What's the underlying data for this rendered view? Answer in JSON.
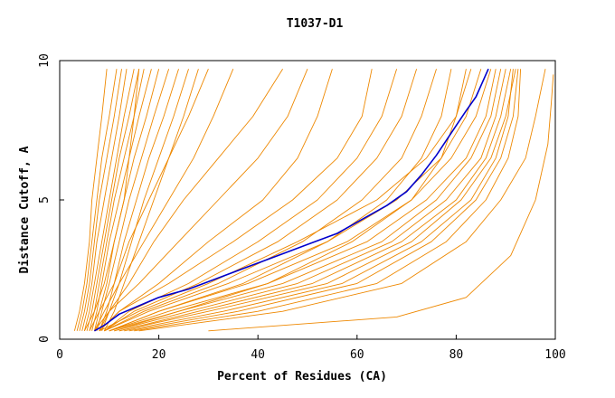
{
  "chart_data": {
    "type": "line",
    "title": "T1037-D1",
    "xlabel": "Percent of Residues (CA)",
    "ylabel": "Distance Cutoff, A",
    "xlim": [
      0,
      100
    ],
    "ylim": [
      0,
      10
    ],
    "xticks": [
      0,
      20,
      40,
      60,
      80,
      100
    ],
    "yticks": [
      0,
      5,
      10
    ],
    "grid": false,
    "colors": {
      "orange": "#ee8800",
      "blue": "#0000cc",
      "frame": "#000000"
    },
    "highlight": {
      "x": [
        7,
        9,
        12,
        16,
        20,
        26,
        32,
        38,
        44,
        50,
        56,
        61,
        66,
        70,
        73,
        76,
        79,
        82,
        84,
        85.5,
        86.5
      ],
      "y": [
        0.3,
        0.5,
        0.9,
        1.2,
        1.5,
        1.8,
        2.2,
        2.6,
        3.0,
        3.4,
        3.8,
        4.3,
        4.8,
        5.3,
        5.9,
        6.6,
        7.4,
        8.2,
        8.7,
        9.3,
        9.7
      ]
    },
    "series": [
      {
        "x": [
          3.5,
          4.5,
          5.5,
          6.5,
          7.5,
          8.5,
          10.0,
          11.5
        ],
        "y": [
          0.3,
          1.0,
          2.0,
          3.5,
          5.0,
          6.5,
          8.0,
          9.7
        ]
      },
      {
        "x": [
          4.0,
          5.0,
          6.0,
          7.0,
          8.0,
          9.5,
          11.0,
          12.5
        ],
        "y": [
          0.3,
          1.0,
          2.0,
          3.5,
          5.0,
          6.5,
          8.0,
          9.7
        ]
      },
      {
        "x": [
          4.5,
          5.5,
          6.5,
          7.5,
          9.0,
          10.5,
          12.0,
          13.5
        ],
        "y": [
          0.3,
          1.0,
          2.0,
          3.5,
          5.0,
          6.5,
          8.0,
          9.7
        ]
      },
      {
        "x": [
          5.0,
          6.0,
          7.0,
          8.5,
          10.0,
          11.5,
          13.0,
          15.0
        ],
        "y": [
          0.3,
          1.0,
          2.0,
          3.5,
          5.0,
          6.5,
          8.0,
          9.7
        ]
      },
      {
        "x": [
          5.5,
          6.5,
          7.5,
          9.0,
          10.5,
          12.0,
          14.0,
          16.0
        ],
        "y": [
          0.3,
          1.0,
          2.0,
          3.5,
          5.0,
          6.5,
          8.0,
          9.7
        ]
      },
      {
        "x": [
          6.0,
          7.0,
          8.0,
          9.5,
          11.0,
          13.0,
          15.0,
          17.0
        ],
        "y": [
          0.3,
          1.0,
          2.0,
          3.5,
          5.0,
          6.5,
          8.0,
          9.7
        ]
      },
      {
        "x": [
          6.5,
          7.5,
          8.5,
          10.0,
          12.0,
          14.0,
          16.0,
          18.5
        ],
        "y": [
          0.3,
          1.0,
          2.0,
          3.5,
          5.0,
          6.5,
          8.0,
          9.7
        ]
      },
      {
        "x": [
          7.0,
          8.0,
          9.5,
          11.0,
          13.0,
          15.0,
          17.5,
          20.0
        ],
        "y": [
          0.3,
          1.0,
          2.0,
          3.5,
          5.0,
          6.5,
          8.0,
          9.7
        ]
      },
      {
        "x": [
          7.5,
          8.5,
          10.0,
          12.0,
          14.0,
          16.5,
          19.0,
          22.0
        ],
        "y": [
          0.3,
          1.0,
          2.0,
          3.5,
          5.0,
          6.5,
          8.0,
          9.7
        ]
      },
      {
        "x": [
          8.0,
          9.5,
          11.0,
          13.0,
          15.5,
          18.0,
          21.0,
          24.0
        ],
        "y": [
          0.3,
          1.0,
          2.0,
          3.5,
          5.0,
          6.5,
          8.0,
          9.7
        ]
      },
      {
        "x": [
          8.5,
          10.0,
          12.0,
          14.5,
          17.0,
          20.0,
          23.0,
          26.0
        ],
        "y": [
          0.3,
          1.0,
          2.0,
          3.5,
          5.0,
          6.5,
          8.0,
          9.7
        ]
      },
      {
        "x": [
          9.0,
          11.0,
          13.0,
          16.0,
          19.0,
          22.0,
          25.0,
          28.0
        ],
        "y": [
          0.3,
          1.0,
          2.0,
          3.5,
          5.0,
          6.5,
          8.0,
          9.7
        ]
      },
      {
        "x": [
          3.0,
          4.0,
          5.0,
          6.0,
          6.5,
          7.5,
          8.5,
          9.5
        ],
        "y": [
          0.3,
          1.0,
          2.0,
          3.5,
          5.0,
          6.5,
          8.0,
          9.7
        ]
      },
      {
        "x": [
          5.0,
          7.0,
          9.0,
          11.0,
          13.0,
          14.0,
          15.0,
          16.0
        ],
        "y": [
          0.3,
          1.0,
          2.0,
          3.5,
          5.0,
          6.5,
          8.0,
          9.7
        ]
      },
      {
        "x": [
          6.0,
          8.0,
          11.0,
          14.0,
          18.0,
          22.0,
          26.0,
          30.0
        ],
        "y": [
          0.3,
          1.0,
          2.0,
          3.5,
          5.0,
          6.5,
          8.0,
          9.7
        ]
      },
      {
        "x": [
          7.0,
          9.0,
          12.0,
          17.0,
          22.0,
          27.0,
          31.0,
          35.0
        ],
        "y": [
          0.3,
          1.0,
          2.0,
          3.5,
          5.0,
          6.5,
          8.0,
          9.7
        ]
      },
      {
        "x": [
          8.0,
          10.0,
          14.0,
          19.0,
          25.0,
          32.0,
          39.0,
          45.0
        ],
        "y": [
          0.3,
          1.0,
          2.0,
          3.5,
          5.0,
          6.5,
          8.0,
          9.7
        ]
      },
      {
        "x": [
          7.0,
          10.0,
          16.0,
          24.0,
          32.0,
          40.0,
          46.0,
          50.0
        ],
        "y": [
          0.3,
          1.0,
          2.0,
          3.5,
          5.0,
          6.5,
          8.0,
          9.7
        ]
      },
      {
        "x": [
          8.0,
          12.0,
          20.0,
          30.0,
          41.0,
          48.0,
          52.0,
          55.0
        ],
        "y": [
          0.3,
          1.0,
          2.0,
          3.5,
          5.0,
          6.5,
          8.0,
          9.7
        ]
      },
      {
        "x": [
          8.0,
          12.0,
          22.0,
          35.0,
          47.0,
          56.0,
          61.0,
          63.0
        ],
        "y": [
          0.3,
          1.0,
          2.0,
          3.5,
          5.0,
          6.5,
          8.0,
          9.7
        ]
      },
      {
        "x": [
          9.0,
          14.0,
          26.0,
          40.0,
          52.0,
          60.0,
          65.0,
          68.0
        ],
        "y": [
          0.3,
          1.0,
          2.0,
          3.5,
          5.0,
          6.5,
          8.0,
          9.7
        ]
      },
      {
        "x": [
          9.0,
          15.0,
          28.0,
          44.0,
          56.0,
          64.0,
          69.0,
          72.0
        ],
        "y": [
          0.3,
          1.0,
          2.0,
          3.5,
          5.0,
          6.5,
          8.0,
          9.7
        ]
      },
      {
        "x": [
          9.0,
          17.0,
          32.0,
          49.0,
          61.0,
          69.0,
          73.0,
          76.0
        ],
        "y": [
          0.3,
          1.0,
          2.0,
          3.5,
          5.0,
          6.5,
          8.0,
          9.7
        ]
      },
      {
        "x": [
          10.0,
          20.0,
          37.0,
          54.0,
          66.0,
          73.0,
          77.0,
          79.0
        ],
        "y": [
          0.3,
          1.0,
          2.0,
          3.5,
          5.0,
          6.5,
          8.0,
          9.7
        ]
      },
      {
        "x": [
          10.0,
          24.0,
          42.0,
          59.0,
          71.0,
          77.0,
          80.0,
          82.0
        ],
        "y": [
          0.3,
          1.0,
          2.0,
          3.5,
          5.0,
          6.5,
          8.0,
          9.7
        ]
      },
      {
        "x": [
          8.0,
          16.0,
          30.0,
          48.0,
          64.0,
          74.0,
          80.0,
          83.0
        ],
        "y": [
          0.3,
          1.0,
          2.0,
          3.5,
          5.0,
          6.5,
          8.0,
          9.7
        ]
      },
      {
        "x": [
          9.0,
          18.0,
          34.0,
          54.0,
          68.0,
          77.0,
          82.0,
          85.0
        ],
        "y": [
          0.3,
          1.0,
          2.0,
          3.5,
          5.0,
          6.5,
          8.0,
          9.7
        ]
      },
      {
        "x": [
          10.0,
          20.0,
          38.0,
          58.0,
          71.0,
          79.0,
          84.0,
          87.0
        ],
        "y": [
          0.3,
          1.0,
          2.0,
          3.5,
          5.0,
          6.5,
          8.0,
          9.7
        ]
      },
      {
        "x": [
          10.0,
          22.0,
          42.0,
          62.0,
          74.0,
          82.0,
          86.0,
          88.0
        ],
        "y": [
          0.3,
          1.0,
          2.0,
          3.5,
          5.0,
          6.5,
          8.0,
          9.7
        ]
      },
      {
        "x": [
          11.0,
          24.0,
          45.0,
          65.0,
          76.0,
          83.0,
          87.0,
          89.0
        ],
        "y": [
          0.3,
          1.0,
          2.0,
          3.5,
          5.0,
          6.5,
          8.0,
          9.7
        ]
      },
      {
        "x": [
          11.0,
          26.0,
          48.0,
          67.0,
          78.0,
          85.0,
          88.0,
          90.0
        ],
        "y": [
          0.3,
          1.0,
          2.0,
          3.5,
          5.0,
          6.5,
          8.0,
          9.7
        ]
      },
      {
        "x": [
          12.0,
          28.0,
          51.0,
          69.0,
          80.0,
          86.0,
          89.0,
          91.0
        ],
        "y": [
          0.3,
          1.0,
          2.0,
          3.5,
          5.0,
          6.5,
          8.0,
          9.7
        ]
      },
      {
        "x": [
          12.0,
          30.0,
          54.0,
          71.0,
          81.0,
          87.0,
          90.0,
          92.0
        ],
        "y": [
          0.3,
          1.0,
          2.0,
          3.5,
          5.0,
          6.5,
          8.0,
          9.7
        ]
      },
      {
        "x": [
          13.0,
          33.0,
          57.0,
          73.0,
          83.0,
          88.0,
          90.5,
          91.5
        ],
        "y": [
          0.3,
          1.0,
          2.0,
          3.5,
          5.0,
          6.5,
          8.0,
          9.7
        ]
      },
      {
        "x": [
          14.0,
          36.0,
          60.0,
          75.0,
          84.0,
          89.0,
          91.5,
          92.5
        ],
        "y": [
          0.3,
          1.0,
          2.0,
          3.5,
          5.0,
          6.5,
          8.0,
          9.7
        ]
      },
      {
        "x": [
          15.0,
          40.0,
          64.0,
          78.0,
          86.0,
          90.5,
          92.5,
          93.0
        ],
        "y": [
          0.3,
          1.0,
          2.0,
          3.5,
          5.0,
          6.5,
          8.0,
          9.7
        ]
      },
      {
        "x": [
          16.0,
          45.0,
          69.0,
          82.0,
          89.0,
          94.0,
          96.0,
          98.0
        ],
        "y": [
          0.3,
          1.0,
          2.0,
          3.5,
          5.0,
          6.5,
          8.0,
          9.7
        ]
      },
      {
        "x": [
          30.0,
          68.0,
          82.0,
          91.0,
          96.0,
          98.5,
          99.2,
          99.6
        ],
        "y": [
          0.3,
          0.8,
          1.5,
          3.0,
          5.0,
          7.0,
          8.5,
          9.5
        ]
      }
    ]
  }
}
